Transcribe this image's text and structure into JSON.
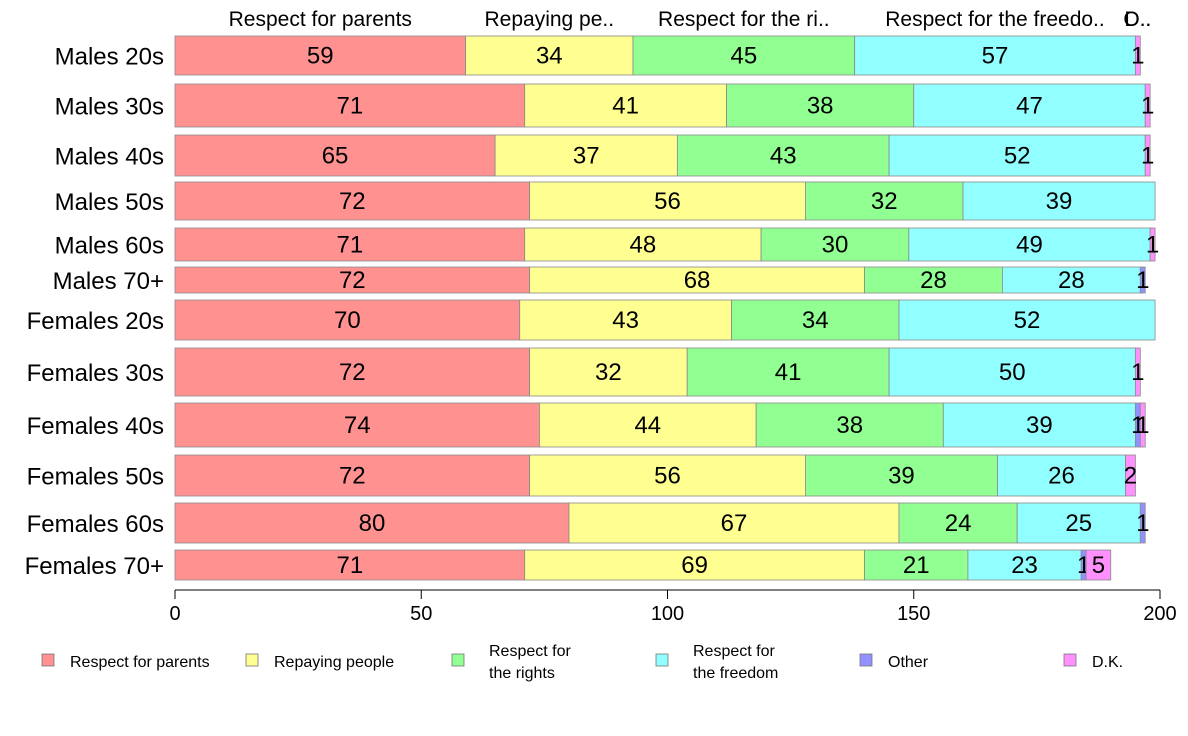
{
  "chart_data": {
    "type": "bar",
    "orientation": "horizontal",
    "stacked": true,
    "categories": [
      "Males 20s",
      "Males 30s",
      "Males 40s",
      "Males 50s",
      "Males 60s",
      "Males 70+",
      "Females 20s",
      "Females 30s",
      "Females 40s",
      "Females 50s",
      "Females 60s",
      "Females 70+"
    ],
    "series": [
      {
        "name": "Respect for parents",
        "legend_lines": [
          "Respect for parents"
        ],
        "top_label": "Respect for parents",
        "color": "#ff9191",
        "values": [
          59,
          71,
          65,
          72,
          71,
          72,
          70,
          72,
          74,
          72,
          80,
          71
        ]
      },
      {
        "name": "Repaying people",
        "legend_lines": [
          "Repaying people"
        ],
        "top_label": "Repaying pe..",
        "color": "#ffff91",
        "values": [
          34,
          41,
          37,
          56,
          48,
          68,
          43,
          32,
          44,
          56,
          67,
          69
        ]
      },
      {
        "name": "Respect for the rights",
        "legend_lines": [
          "Respect for",
          "the rights"
        ],
        "top_label": "Respect for the ri..",
        "color": "#91ff91",
        "values": [
          45,
          38,
          43,
          32,
          30,
          28,
          34,
          41,
          38,
          39,
          24,
          21
        ]
      },
      {
        "name": "Respect for the freedom",
        "legend_lines": [
          "Respect for",
          "the freedom"
        ],
        "top_label": "Respect for the freedo..",
        "color": "#91ffff",
        "values": [
          57,
          47,
          52,
          39,
          49,
          28,
          52,
          50,
          39,
          26,
          25,
          23
        ]
      },
      {
        "name": "Other",
        "legend_lines": [
          "Other"
        ],
        "top_label": "O..",
        "color": "#9191ff",
        "values": [
          0,
          0,
          0,
          0,
          0,
          1,
          0,
          0,
          1,
          0,
          1,
          1
        ]
      },
      {
        "name": "D.K.",
        "legend_lines": [
          "D.K."
        ],
        "top_label": "D..",
        "color": "#ff91ff",
        "values": [
          1,
          1,
          1,
          0,
          1,
          0,
          0,
          1,
          1,
          2,
          0,
          5
        ]
      }
    ],
    "xlim": [
      0,
      200
    ],
    "xticks": [
      0,
      50,
      100,
      150,
      200
    ],
    "title": "",
    "xlabel": "",
    "ylabel": "",
    "grid": false,
    "legend_position": "bottom"
  }
}
